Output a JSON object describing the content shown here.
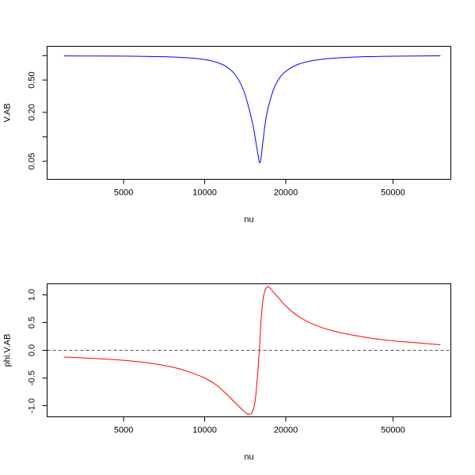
{
  "chart_data": [
    {
      "type": "line",
      "xlabel": "nu",
      "ylabel": "V.AB",
      "xscale": "log",
      "yscale": "log",
      "xlim": [
        2600,
        82000
      ],
      "ylim": [
        0.03,
        1.3
      ],
      "xticks": [
        5000,
        10000,
        20000,
        50000
      ],
      "xtick_labels": [
        "5000",
        "10000",
        "20000",
        "50000"
      ],
      "yticks": [
        0.05,
        0.1,
        0.2,
        0.5,
        1.0
      ],
      "ytick_labels": [
        "0.05",
        "",
        "0.20",
        "0.50",
        ""
      ],
      "color": "#0000ff",
      "series": [
        {
          "x": [
            3000,
            4000,
            5000,
            6000,
            7000,
            8000,
            9000,
            10000,
            11000,
            12000,
            13000,
            14000,
            15000,
            15500,
            15800,
            16000,
            16200,
            16500,
            17000,
            18000,
            19000,
            20000,
            22000,
            25000,
            30000,
            40000,
            50000,
            60000,
            75000
          ],
          "y": [
            0.99,
            0.987,
            0.984,
            0.978,
            0.968,
            0.953,
            0.93,
            0.892,
            0.832,
            0.735,
            0.578,
            0.36,
            0.155,
            0.085,
            0.058,
            0.048,
            0.056,
            0.095,
            0.19,
            0.38,
            0.535,
            0.64,
            0.77,
            0.863,
            0.928,
            0.97,
            0.982,
            0.988,
            0.992
          ]
        }
      ]
    },
    {
      "type": "line",
      "xlabel": "nu",
      "ylabel": "phi.V.AB",
      "xscale": "log",
      "xlim": [
        2600,
        82000
      ],
      "ylim": [
        -1.2,
        1.2
      ],
      "xticks": [
        5000,
        10000,
        20000,
        50000
      ],
      "xtick_labels": [
        "5000",
        "10000",
        "20000",
        "50000"
      ],
      "yticks": [
        -1.0,
        -0.5,
        0.0,
        0.5,
        1.0
      ],
      "ytick_labels": [
        "-1.0",
        "-0.5",
        "0.0",
        "0.5",
        "1.0"
      ],
      "reference_line": {
        "y": 0,
        "style": "dashed"
      },
      "color": "#ff0000",
      "series": [
        {
          "x": [
            3000,
            4000,
            5000,
            6000,
            7000,
            8000,
            9000,
            10000,
            11000,
            12000,
            13000,
            14000,
            14500,
            15000,
            15400,
            15800,
            16000,
            16200,
            16500,
            17000,
            17500,
            18000,
            19000,
            20000,
            22000,
            25000,
            30000,
            40000,
            50000,
            60000,
            75000
          ],
          "y": [
            -0.12,
            -0.15,
            -0.18,
            -0.22,
            -0.27,
            -0.33,
            -0.41,
            -0.5,
            -0.62,
            -0.78,
            -0.95,
            -1.1,
            -1.15,
            -1.12,
            -0.9,
            -0.3,
            0.1,
            0.55,
            0.95,
            1.14,
            1.12,
            1.05,
            0.92,
            0.8,
            0.63,
            0.48,
            0.35,
            0.23,
            0.17,
            0.14,
            0.1
          ]
        }
      ]
    }
  ]
}
